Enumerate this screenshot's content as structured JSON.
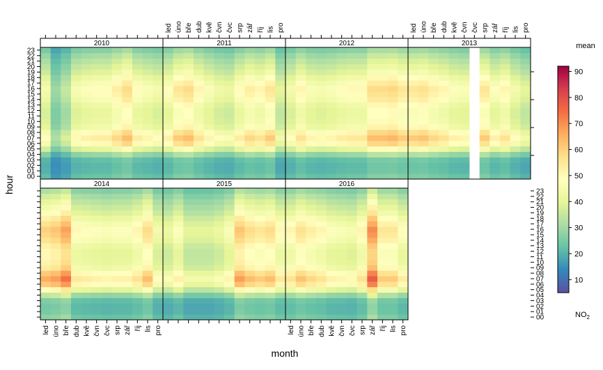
{
  "chart_data": {
    "type": "heatmap",
    "xlabel": "month",
    "ylabel": "hour",
    "months": [
      "led",
      "úno",
      "bře",
      "dub",
      "kvě",
      "čvn",
      "čvc",
      "srp",
      "zář",
      "říj",
      "lis",
      "pro"
    ],
    "hours": [
      "00",
      "01",
      "02",
      "03",
      "04",
      "05",
      "06",
      "07",
      "08",
      "09",
      "10",
      "11",
      "12",
      "13",
      "14",
      "15",
      "16",
      "17",
      "18",
      "19",
      "20",
      "21",
      "22",
      "23"
    ],
    "panels": [
      {
        "year": "2010",
        "peaks": [
          34,
          20,
          25,
          35,
          37,
          38,
          38,
          42,
          46,
          38,
          36,
          34
        ],
        "missing_months": []
      },
      {
        "year": "2011",
        "peaks": [
          37,
          44,
          46,
          40,
          36,
          33,
          32,
          38,
          42,
          40,
          44,
          30
        ],
        "missing_months": []
      },
      {
        "year": "2012",
        "peaks": [
          34,
          40,
          36,
          35,
          36,
          38,
          39,
          39,
          46,
          46,
          47,
          44
        ],
        "missing_months": []
      },
      {
        "year": "2013",
        "peaks": [
          44,
          45,
          42,
          40,
          37,
          36,
          35,
          44,
          37,
          40,
          34,
          30
        ],
        "missing_months": [
          6
        ]
      },
      {
        "year": "2014",
        "peaks": [
          48,
          50,
          55,
          39,
          38,
          37,
          36,
          37,
          37,
          40,
          46,
          34
        ],
        "missing_months": []
      },
      {
        "year": "2015",
        "peaks": [
          32,
          37,
          30,
          30,
          30,
          32,
          36,
          50,
          46,
          44,
          46,
          39
        ],
        "missing_months": []
      },
      {
        "year": "2016",
        "peaks": [
          40,
          45,
          42,
          40,
          37,
          36,
          35,
          40,
          58,
          44,
          44,
          38
        ],
        "missing_months": []
      }
    ],
    "colorbar": {
      "title": "mean",
      "label": "NO",
      "label_sub": "2",
      "range": [
        5,
        92
      ],
      "ticks": [
        10,
        20,
        30,
        40,
        50,
        60,
        70,
        80,
        90
      ]
    },
    "right_axis_ticks": [
      10,
      30,
      50,
      70,
      90
    ],
    "right_axis_ticks_description": "tick labels for the right-hand outer axis of the top row are printed as the numbers 90, 70, 50, 30, 10 from top"
  }
}
